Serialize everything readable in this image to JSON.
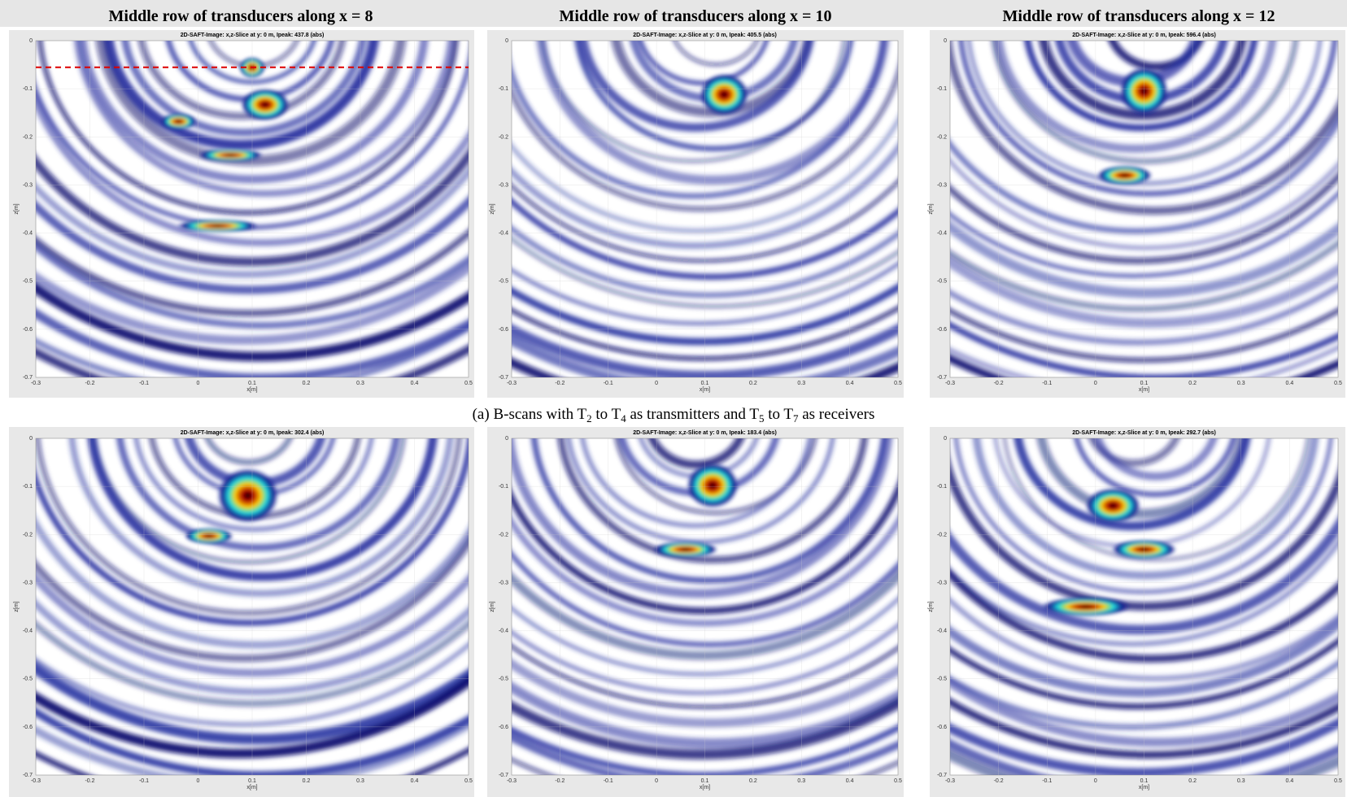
{
  "figure": {
    "column_titles": [
      "Middle row of transducers along x = 8",
      "Middle row of transducers along x = 10",
      "Middle row of transducers along x = 12"
    ],
    "panels": [
      {
        "subtitle": "2D-SAFT-Image: x,z-Slice at y: 0 m, Ipeak: 437.8 (abs)"
      },
      {
        "subtitle": "2D-SAFT-Image: x,z-Slice at y: 0 m, Ipeak: 405.5 (abs)"
      },
      {
        "subtitle": "2D-SAFT-Image: x,z-Slice at y: 0 m, Ipeak: 596.4 (abs)"
      },
      {
        "subtitle": "2D-SAFT-Image: x,z-Slice at y: 0 m, Ipeak: 302.4 (abs)"
      },
      {
        "subtitle": "2D-SAFT-Image: x,z-Slice at y: 0 m, Ipeak: 183.4 (abs)"
      },
      {
        "subtitle": "2D-SAFT-Image: x,z-Slice at y: 0 m, Ipeak: 292.7 (abs)"
      }
    ],
    "x_label": "x[m]",
    "y_label": "z[m]",
    "x_ticks": [
      "-0.3",
      "-0.2",
      "-0.1",
      "0",
      "0.1",
      "0.2",
      "0.3",
      "0.4",
      "0.5"
    ],
    "y_ticks": [
      "0",
      "-0.1",
      "-0.2",
      "-0.3",
      "-0.4",
      "-0.5",
      "-0.6",
      "-0.7"
    ],
    "caption": [
      "(a) B-scans with T",
      "2",
      " to T",
      "4",
      " as transmitters and T",
      "5",
      " to T",
      "7",
      " as receivers"
    ]
  }
}
